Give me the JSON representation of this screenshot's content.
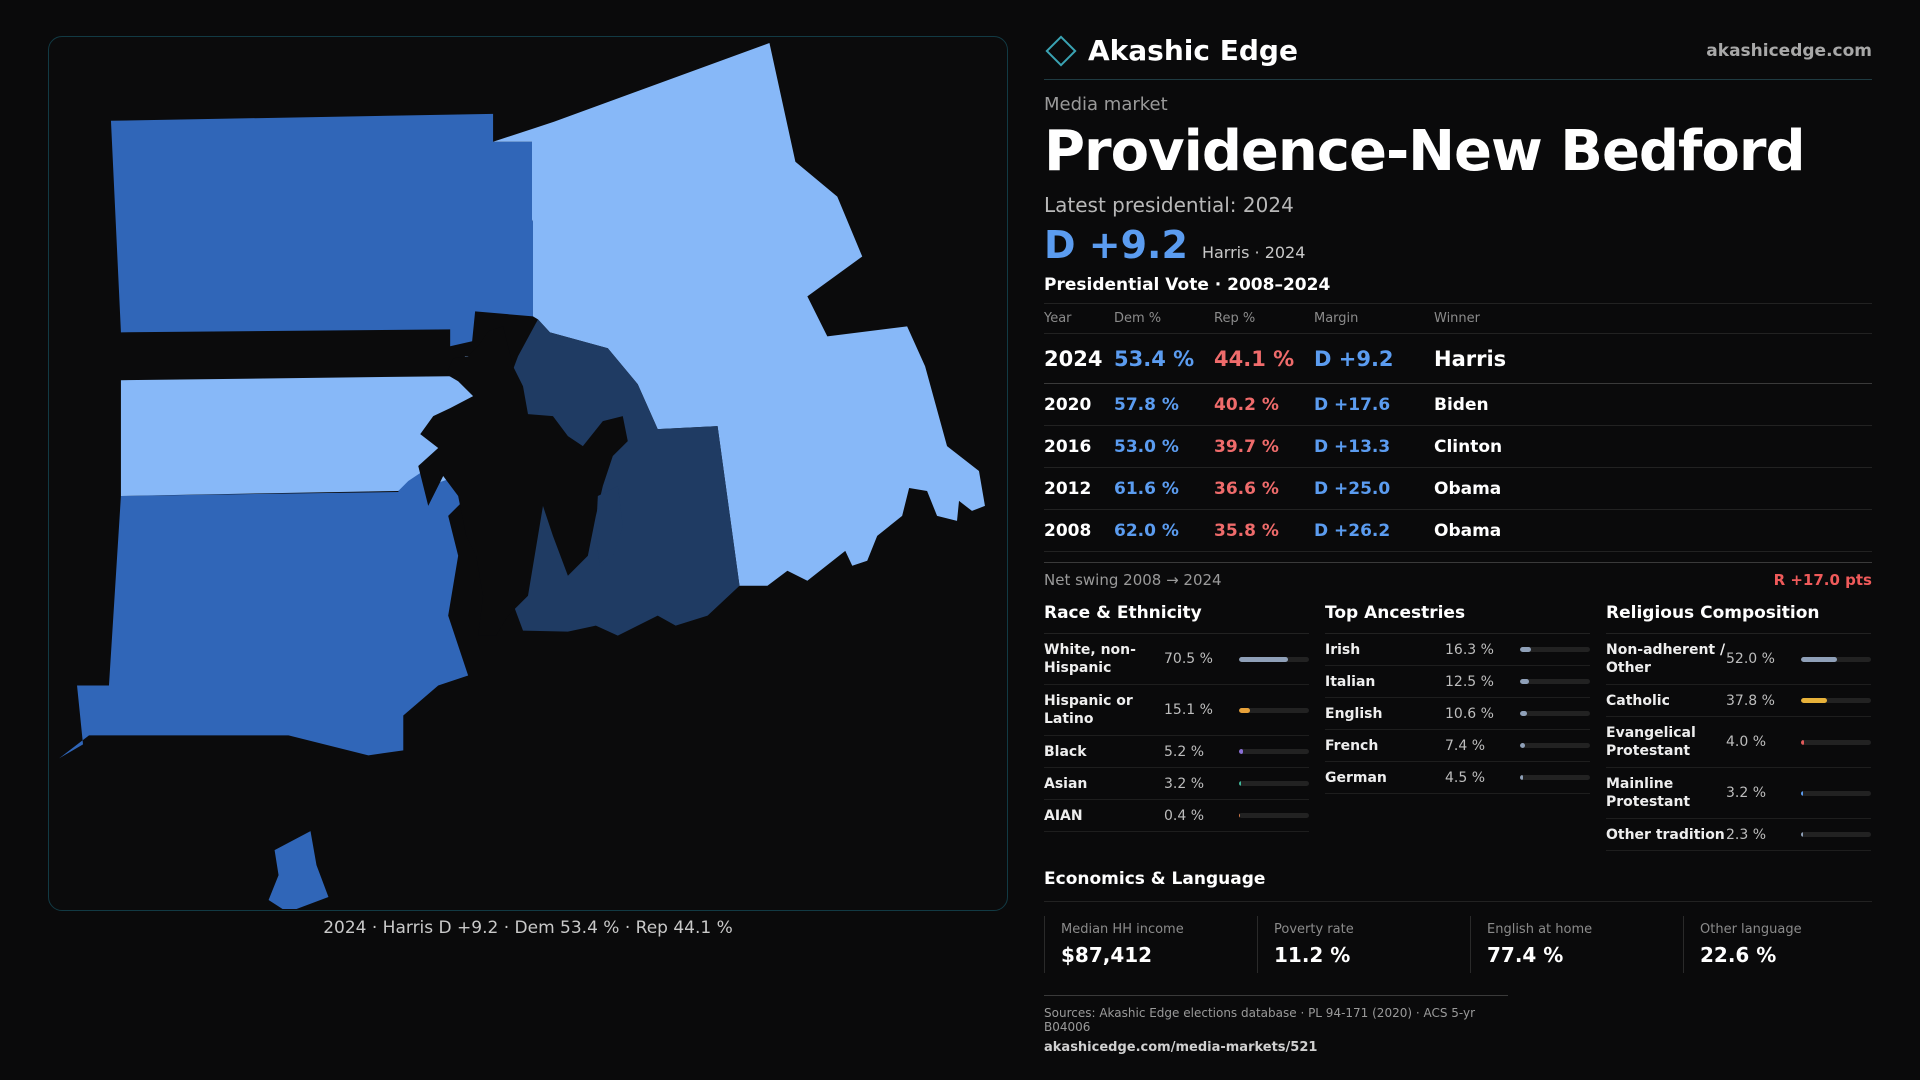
{
  "brand": {
    "name": "Akashic Edge",
    "site": "akashicedge.com",
    "logo_icon": "diamond-outline-icon"
  },
  "market": {
    "kicker": "Media market",
    "name": "Providence-New Bedford",
    "latest": "Latest presidential: 2024",
    "headline_margin": "D +9.2",
    "headline_note": "Harris · 2024"
  },
  "map": {
    "caption": "2024 · Harris D +9.2 · Dem 53.4 % · Rep 44.1 %",
    "colors": {
      "dark_blue": "#3066b8",
      "light_blue": "#87b8f8",
      "navy": "#1f3b63",
      "background": "#0b0b0c"
    }
  },
  "presidential": {
    "title": "Presidential Vote · 2008–2024",
    "headers": {
      "year": "Year",
      "dem": "Dem %",
      "rep": "Rep %",
      "margin": "Margin",
      "winner": "Winner"
    },
    "rows": [
      {
        "year": "2024",
        "dem": "53.4 %",
        "rep": "44.1 %",
        "margin": "D +9.2",
        "winner": "Harris"
      },
      {
        "year": "2020",
        "dem": "57.8 %",
        "rep": "40.2 %",
        "margin": "D +17.6",
        "winner": "Biden"
      },
      {
        "year": "2016",
        "dem": "53.0 %",
        "rep": "39.7 %",
        "margin": "D +13.3",
        "winner": "Clinton"
      },
      {
        "year": "2012",
        "dem": "61.6 %",
        "rep": "36.6 %",
        "margin": "D +25.0",
        "winner": "Obama"
      },
      {
        "year": "2008",
        "dem": "62.0 %",
        "rep": "35.8 %",
        "margin": "D +26.2",
        "winner": "Obama"
      }
    ],
    "swing_label": "Net swing 2008 → 2024",
    "swing_value": "R +17.0 pts",
    "colors": {
      "dem": "#5b9cf0",
      "rep": "#ef6b6b"
    }
  },
  "race": {
    "title": "Race & Ethnicity",
    "rows": [
      {
        "label": "White, non-Hispanic",
        "value": "70.5 %",
        "share": 0.705,
        "color": "#8fa0b8"
      },
      {
        "label": "Hispanic or Latino",
        "value": "15.1 %",
        "share": 0.151,
        "color": "#e8a23a"
      },
      {
        "label": "Black",
        "value": "5.2 %",
        "share": 0.052,
        "color": "#8a6fd6"
      },
      {
        "label": "Asian",
        "value": "3.2 %",
        "share": 0.032,
        "color": "#3fb89a"
      },
      {
        "label": "AIAN",
        "value": "0.4 %",
        "share": 0.004,
        "color": "#d07a4a"
      }
    ]
  },
  "ancestry": {
    "title": "Top Ancestries",
    "rows": [
      {
        "label": "Irish",
        "value": "16.3 %",
        "share": 0.163,
        "color": "#8fa0b8"
      },
      {
        "label": "Italian",
        "value": "12.5 %",
        "share": 0.125,
        "color": "#8fa0b8"
      },
      {
        "label": "English",
        "value": "10.6 %",
        "share": 0.106,
        "color": "#8fa0b8"
      },
      {
        "label": "French",
        "value": "7.4 %",
        "share": 0.074,
        "color": "#8fa0b8"
      },
      {
        "label": "German",
        "value": "4.5 %",
        "share": 0.045,
        "color": "#8fa0b8"
      }
    ]
  },
  "religion": {
    "title": "Religious Composition",
    "rows": [
      {
        "label": "Non-adherent / Other",
        "value": "52.0 %",
        "share": 0.52,
        "color": "#8fa0b8"
      },
      {
        "label": "Catholic",
        "value": "37.8 %",
        "share": 0.378,
        "color": "#e8b23a"
      },
      {
        "label": "Evangelical Protestant",
        "value": "4.0 %",
        "share": 0.04,
        "color": "#e05a5a"
      },
      {
        "label": "Mainline Protestant",
        "value": "3.2 %",
        "share": 0.032,
        "color": "#5b9cf0"
      },
      {
        "label": "Other tradition",
        "value": "2.3 %",
        "share": 0.023,
        "color": "#8fa0b8"
      }
    ]
  },
  "economics": {
    "title": "Economics & Language",
    "cards": [
      {
        "label": "Median HH income",
        "value": "$87,412"
      },
      {
        "label": "Poverty rate",
        "value": "11.2 %"
      },
      {
        "label": "English at home",
        "value": "77.4 %"
      },
      {
        "label": "Other language",
        "value": "22.6 %"
      }
    ]
  },
  "sources": {
    "line": "Sources: Akashic Edge elections database · PL 94-171 (2020) · ACS 5-yr B04006",
    "url": "akashicedge.com/media-markets/521"
  }
}
